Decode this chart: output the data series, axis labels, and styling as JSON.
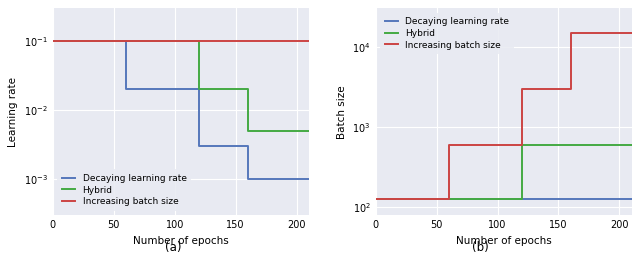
{
  "left": {
    "title": "(a)",
    "xlabel": "Number of epochs",
    "ylabel": "Learning rate",
    "xlim": [
      0,
      210
    ],
    "ylim": [
      0.0003,
      0.3
    ],
    "blue": {
      "x": [
        0,
        60,
        60,
        120,
        120,
        160,
        160,
        210
      ],
      "y": [
        0.1,
        0.1,
        0.02,
        0.02,
        0.003,
        0.003,
        0.001,
        0.001
      ],
      "label": "Decaying learning rate",
      "color": "#5577bb"
    },
    "green": {
      "x": [
        0,
        120,
        120,
        160,
        160,
        210
      ],
      "y": [
        0.1,
        0.1,
        0.02,
        0.02,
        0.005,
        0.005
      ],
      "label": "Hybrid",
      "color": "#44aa44"
    },
    "red": {
      "x": [
        0,
        210
      ],
      "y": [
        0.1,
        0.1
      ],
      "label": "Increasing batch size",
      "color": "#cc4444"
    },
    "yticks": [
      0.001,
      0.01,
      0.1
    ],
    "xticks": [
      0,
      50,
      100,
      150,
      200
    ]
  },
  "right": {
    "title": "(b)",
    "xlabel": "Number of epochs",
    "ylabel": "Batch size",
    "xlim": [
      0,
      210
    ],
    "ylim": [
      80,
      30000
    ],
    "blue": {
      "x": [
        0,
        210
      ],
      "y": [
        128,
        128
      ],
      "label": "Decaying learning rate",
      "color": "#5577bb"
    },
    "green": {
      "x": [
        0,
        120,
        120,
        210
      ],
      "y": [
        128,
        128,
        600,
        600
      ],
      "label": "Hybrid",
      "color": "#44aa44"
    },
    "red": {
      "x": [
        0,
        60,
        60,
        120,
        120,
        160,
        160,
        210
      ],
      "y": [
        128,
        128,
        600,
        600,
        3000,
        3000,
        15000,
        15000
      ],
      "label": "Increasing batch size",
      "color": "#cc4444"
    },
    "yticks": [
      100,
      1000,
      10000
    ],
    "xticks": [
      0,
      50,
      100,
      150,
      200
    ]
  },
  "bg_color": "#e8eaf2",
  "legend_fontsize": 6.5,
  "axis_fontsize": 7.5,
  "tick_fontsize": 7,
  "title_fontsize": 8.5,
  "linewidth": 1.4
}
